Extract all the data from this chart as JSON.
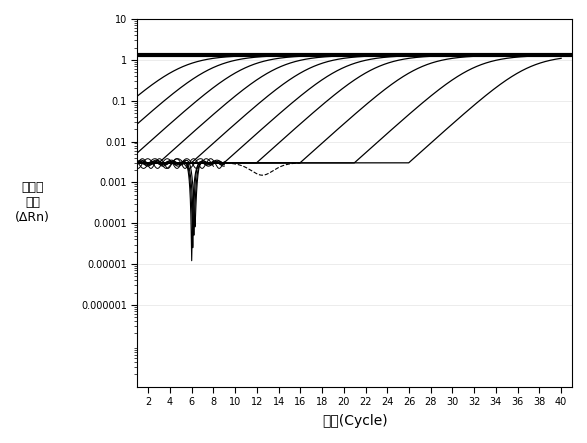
{
  "xlabel": "循环(Cycle)",
  "ylabel": "相对荧\n光量\n(ΔRn)",
  "xlim": [
    1,
    41
  ],
  "ylim_low": 1e-08,
  "ylim_high": 10,
  "xticks": [
    2,
    4,
    6,
    8,
    10,
    12,
    14,
    16,
    18,
    20,
    22,
    24,
    26,
    28,
    30,
    32,
    34,
    36,
    38,
    40
  ],
  "yticks": [
    1e-06,
    1e-05,
    0.0001,
    0.001,
    0.01,
    0.1,
    1,
    10
  ],
  "ytick_labels": [
    "0.000001",
    "0.00001",
    "0.0001",
    "0.001",
    "0.01",
    "0.1",
    "1",
    "10"
  ],
  "background_color": "#ffffff",
  "line_color": "#000000",
  "curve_cts": [
    5,
    8,
    11,
    14,
    17,
    20,
    23,
    27,
    32,
    37
  ],
  "plateau": 1.3,
  "baseline": 0.003,
  "sigmoid_k": 0.55,
  "figsize": [
    5.87,
    4.43
  ],
  "dpi": 100
}
